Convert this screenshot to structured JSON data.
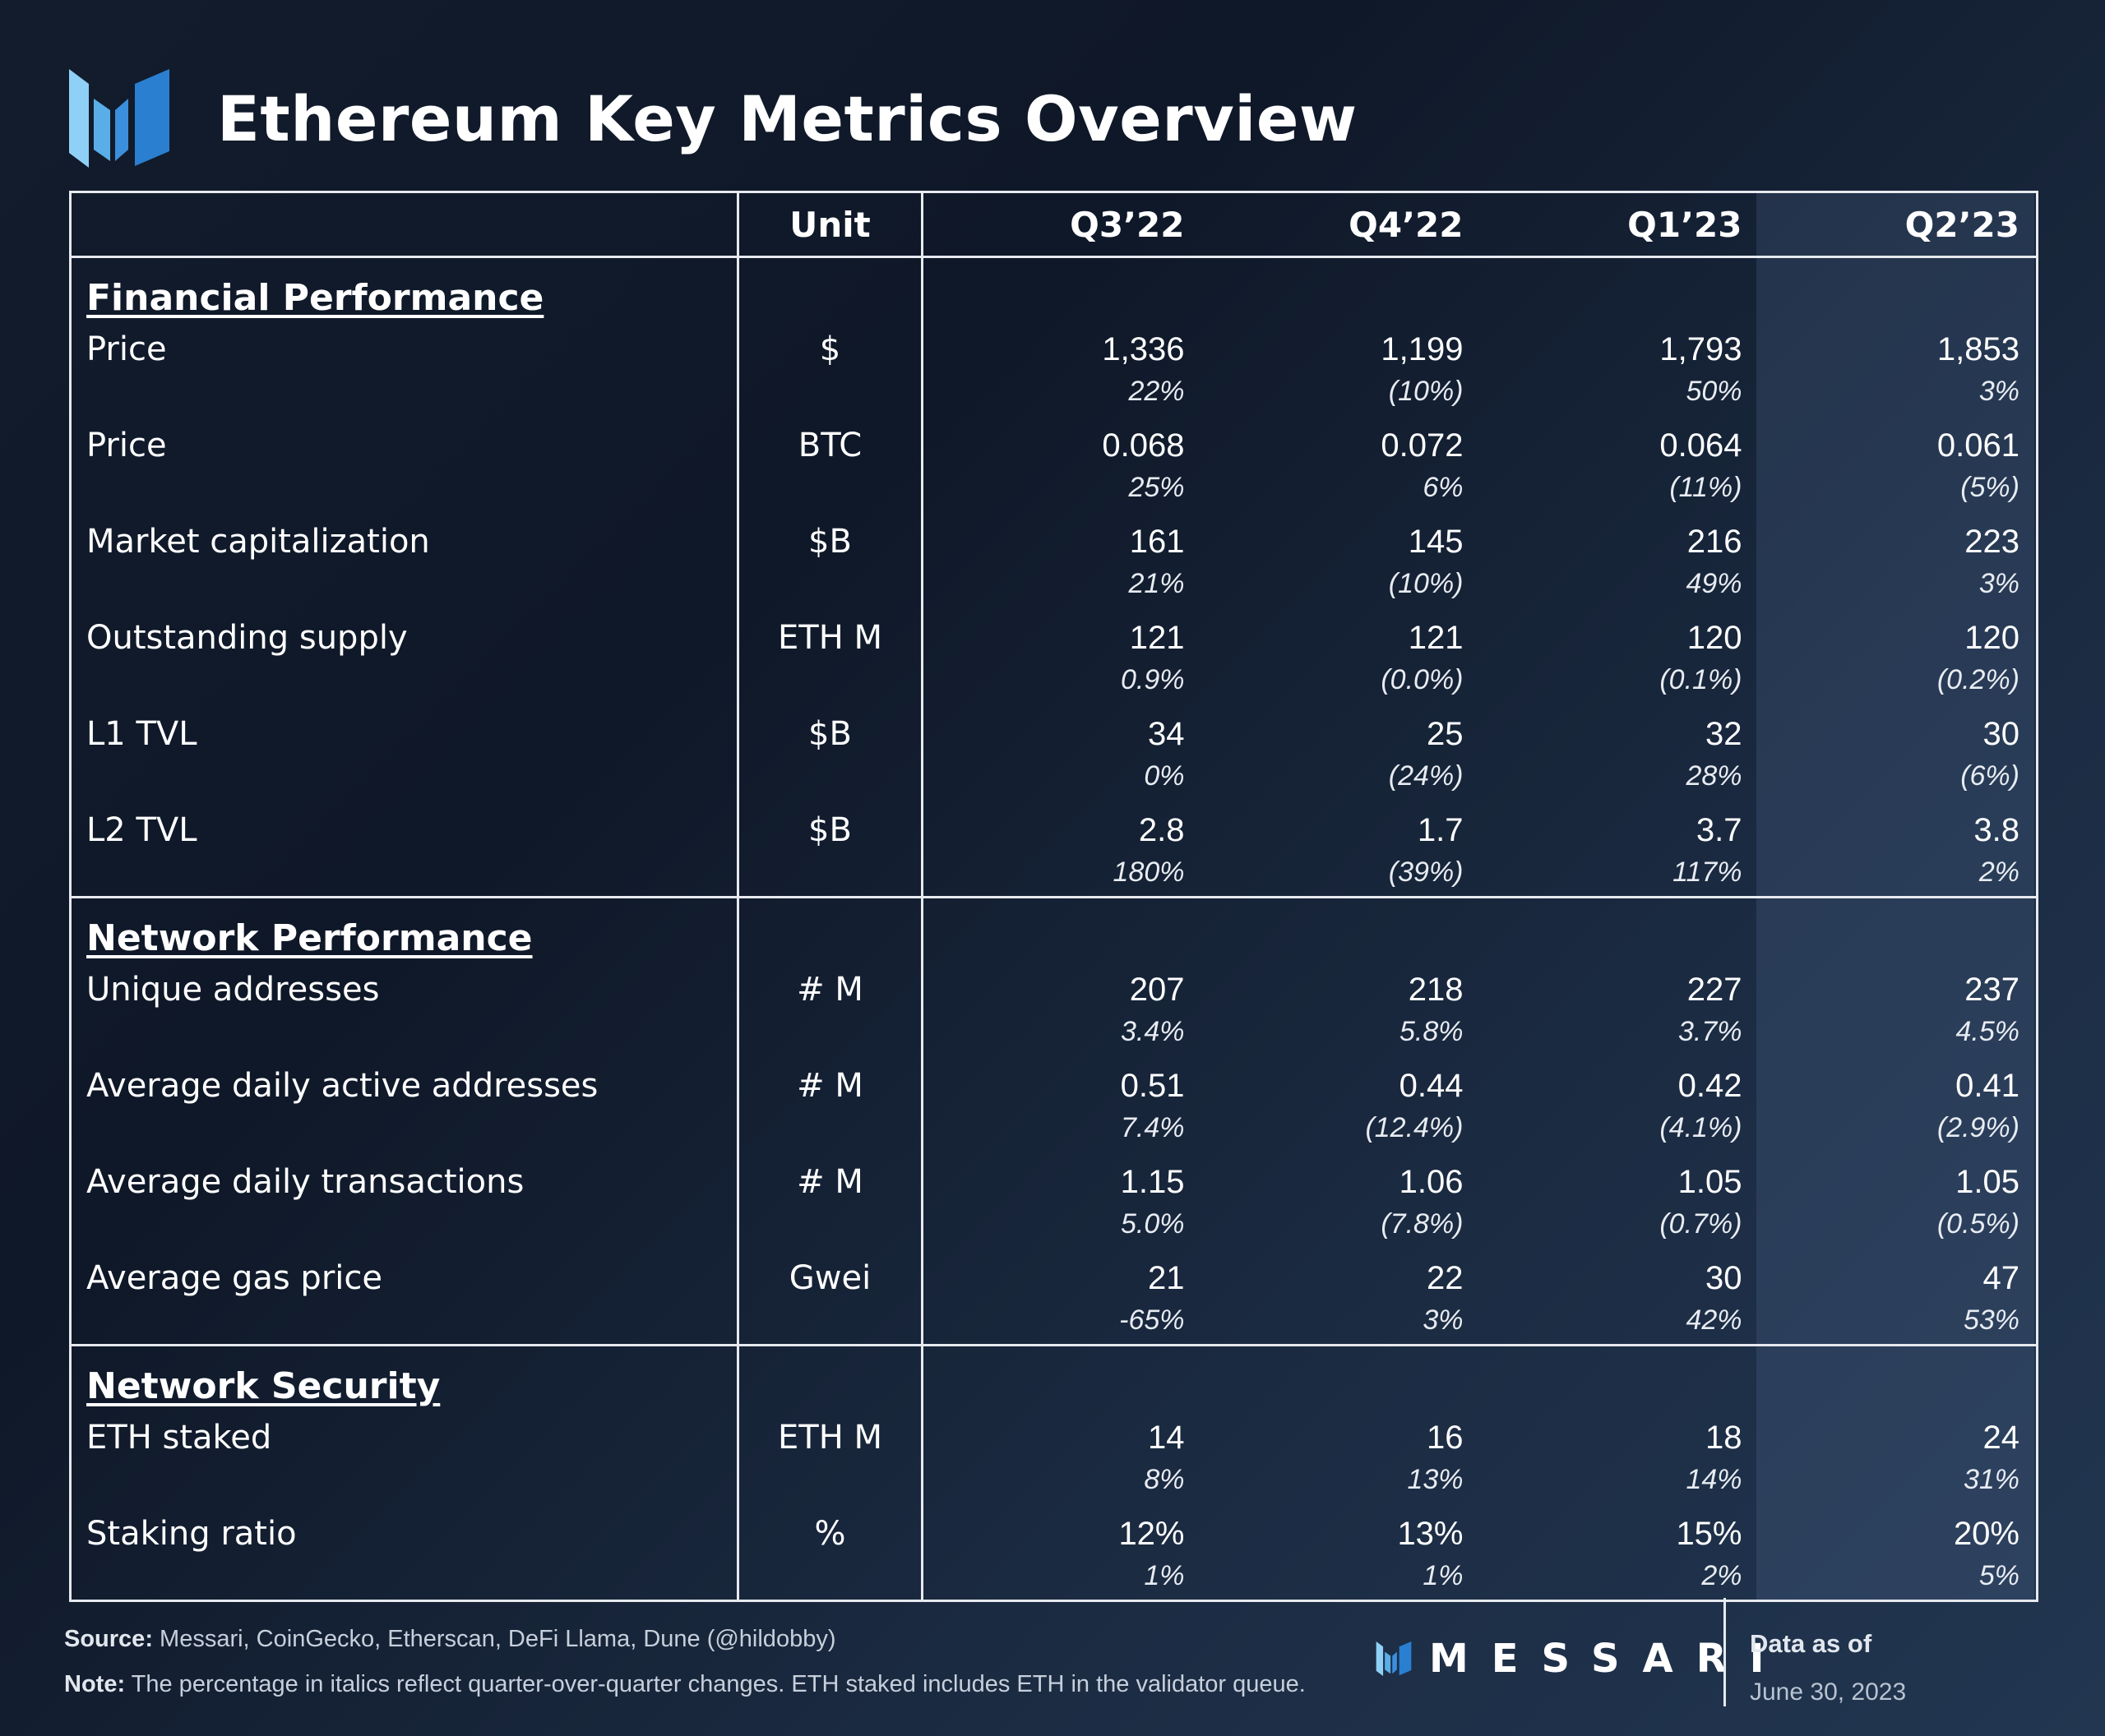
{
  "header": {
    "title": "Ethereum Key Metrics Overview",
    "logo_icon": "messari-logo-icon"
  },
  "table": {
    "columns": [
      "Unit",
      "Q3’22",
      "Q4’22",
      "Q1’23",
      "Q2’23"
    ],
    "sections": [
      {
        "title": "Financial Performance",
        "rows": [
          {
            "label": "Price",
            "unit": "$",
            "values": [
              "1,336",
              "1,199",
              "1,793",
              "1,853"
            ],
            "changes": [
              "22%",
              "(10%)",
              "50%",
              "3%"
            ]
          },
          {
            "label": "Price",
            "unit": "BTC",
            "values": [
              "0.068",
              "0.072",
              "0.064",
              "0.061"
            ],
            "changes": [
              "25%",
              "6%",
              "(11%)",
              "(5%)"
            ]
          },
          {
            "label": "Market capitalization",
            "unit": "$B",
            "values": [
              "161",
              "145",
              "216",
              "223"
            ],
            "changes": [
              "21%",
              "(10%)",
              "49%",
              "3%"
            ]
          },
          {
            "label": "Outstanding supply",
            "unit": "ETH M",
            "values": [
              "121",
              "121",
              "120",
              "120"
            ],
            "changes": [
              "0.9%",
              "(0.0%)",
              "(0.1%)",
              "(0.2%)"
            ]
          },
          {
            "label": "L1 TVL",
            "unit": "$B",
            "values": [
              "34",
              "25",
              "32",
              "30"
            ],
            "changes": [
              "0%",
              "(24%)",
              "28%",
              "(6%)"
            ]
          },
          {
            "label": "L2 TVL",
            "unit": "$B",
            "values": [
              "2.8",
              "1.7",
              "3.7",
              "3.8"
            ],
            "changes": [
              "180%",
              "(39%)",
              "117%",
              "2%"
            ]
          }
        ]
      },
      {
        "title": "Network Performance",
        "rows": [
          {
            "label": "Unique addresses",
            "unit": "# M",
            "values": [
              "207",
              "218",
              "227",
              "237"
            ],
            "changes": [
              "3.4%",
              "5.8%",
              "3.7%",
              "4.5%"
            ]
          },
          {
            "label": "Average daily active addresses",
            "unit": "# M",
            "values": [
              "0.51",
              "0.44",
              "0.42",
              "0.41"
            ],
            "changes": [
              "7.4%",
              "(12.4%)",
              "(4.1%)",
              "(2.9%)"
            ]
          },
          {
            "label": "Average daily transactions",
            "unit": "# M",
            "values": [
              "1.15",
              "1.06",
              "1.05",
              "1.05"
            ],
            "changes": [
              "5.0%",
              "(7.8%)",
              "(0.7%)",
              "(0.5%)"
            ]
          },
          {
            "label": "Average gas price",
            "unit": "Gwei",
            "values": [
              "21",
              "22",
              "30",
              "47"
            ],
            "changes": [
              "-65%",
              "3%",
              "42%",
              "53%"
            ]
          }
        ]
      },
      {
        "title": "Network Security",
        "rows": [
          {
            "label": "ETH staked",
            "unit": "ETH M",
            "values": [
              "14",
              "16",
              "18",
              "24"
            ],
            "changes": [
              "8%",
              "13%",
              "14%",
              "31%"
            ]
          },
          {
            "label": "Staking ratio",
            "unit": "%",
            "values": [
              "12%",
              "13%",
              "15%",
              "20%"
            ],
            "changes": [
              "1%",
              "1%",
              "2%",
              "5%"
            ]
          }
        ]
      }
    ]
  },
  "footer": {
    "source_label": "Source:",
    "source_text": "Messari, CoinGecko, Etherscan, DeFi Llama, Dune (@hildobby)",
    "note_label": "Note:",
    "note_text": "The percentage in italics reflect quarter-over-quarter changes. ETH staked includes ETH in the validator queue.",
    "brand": "MESSARI",
    "data_as_of_label": "Data as of",
    "data_as_of_date": "June 30, 2023"
  },
  "colors": {
    "background": "#121c2c",
    "logo_light": "#7cc2f0",
    "logo_dark": "#2a7fd0",
    "text": "#ffffff"
  }
}
